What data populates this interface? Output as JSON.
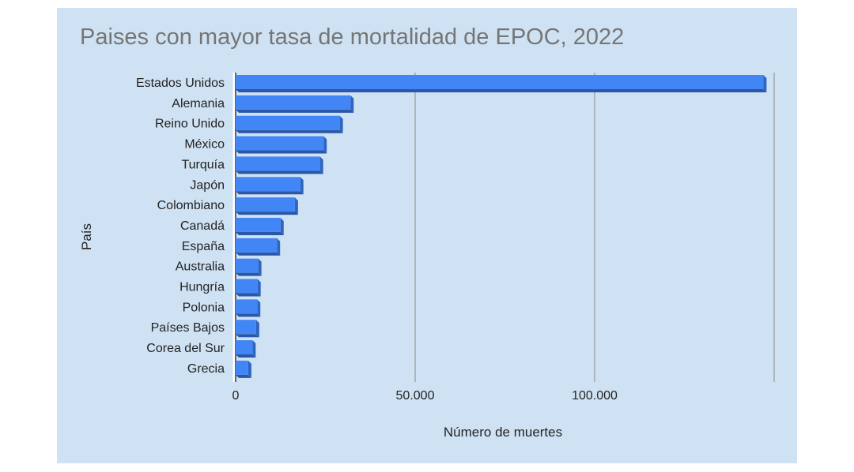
{
  "chart_data": {
    "type": "bar",
    "orientation": "horizontal",
    "title": "Paises con mayor tasa de mortalidad de EPOC, 2022",
    "xlabel": "Número de muertes",
    "ylabel": "País",
    "categories": [
      "Estados Unidos",
      "Alemania",
      "Reino Unido",
      "México",
      "Turquía",
      "Japón",
      "Colombiano",
      "Canadá",
      "España",
      "Australia",
      "Hungría",
      "Polonia",
      "Países Bajos",
      "Corea del Sur",
      "Grecia"
    ],
    "values": [
      147000,
      32000,
      29000,
      24500,
      23500,
      18000,
      16500,
      12500,
      11500,
      6300,
      6100,
      6000,
      5700,
      4700,
      3500
    ],
    "xlim": [
      0,
      150000
    ],
    "xticks": [
      0,
      50000,
      100000
    ],
    "xtick_labels": [
      "0",
      "50.000",
      "100.000"
    ],
    "grid": true,
    "bar_color": "#4285f4"
  }
}
